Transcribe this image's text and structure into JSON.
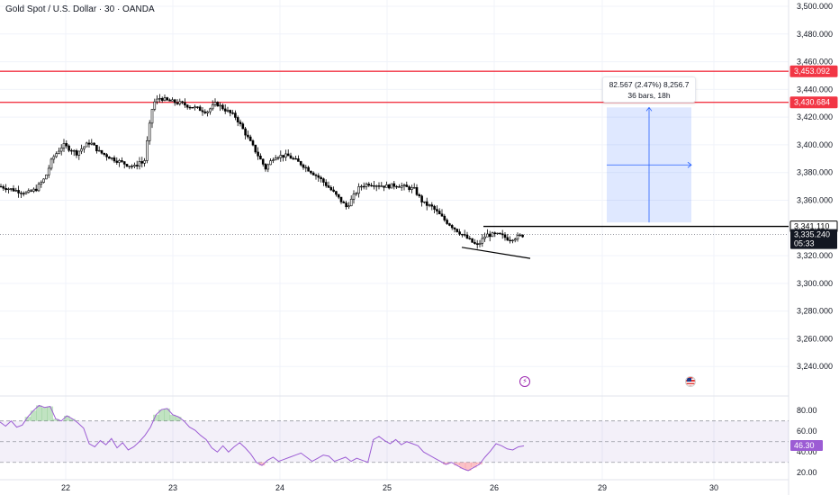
{
  "header": {
    "title": "Gold Spot / U.S. Dollar · 30 · OANDA"
  },
  "chart_data": {
    "type": "candlestick",
    "symbol": "Gold Spot / U.S. Dollar",
    "interval": "30",
    "source": "OANDA",
    "x_tick_labels": [
      "22",
      "23",
      "24",
      "25",
      "26",
      "29",
      "30"
    ],
    "y_tick_labels": [
      "3,500.000",
      "3,480.000",
      "3,460.000",
      "3,440.000",
      "3,420.000",
      "3,400.000",
      "3,380.000",
      "3,360.000",
      "3,320.000",
      "3,300.000",
      "3,280.000",
      "3,260.000",
      "3,240.000"
    ],
    "ylim": [
      3220,
      3500
    ],
    "price_path": [
      [
        "22",
        3370
      ],
      [
        "22",
        3365
      ],
      [
        "22",
        3368
      ],
      [
        "22",
        3376
      ],
      [
        "22",
        3390
      ],
      [
        "22",
        3400
      ],
      [
        "22",
        3394
      ],
      [
        "22",
        3398
      ],
      [
        "22",
        3402
      ],
      [
        "22",
        3395
      ],
      [
        "22",
        3390
      ],
      [
        "22",
        3386
      ],
      [
        "22",
        3384
      ],
      [
        "22",
        3388
      ],
      [
        "22",
        3386
      ],
      [
        "23",
        3405
      ],
      [
        "23",
        3430
      ],
      [
        "23",
        3434
      ],
      [
        "23",
        3432
      ],
      [
        "23",
        3430
      ],
      [
        "23",
        3426
      ],
      [
        "23",
        3424
      ],
      [
        "23",
        3430
      ],
      [
        "23",
        3420
      ],
      [
        "24",
        3383
      ],
      [
        "24",
        3392
      ],
      [
        "24",
        3392
      ],
      [
        "24",
        3386
      ],
      [
        "24",
        3376
      ],
      [
        "24",
        3366
      ],
      [
        "24",
        3355
      ],
      [
        "24",
        3370
      ],
      [
        "25",
        3372
      ],
      [
        "25",
        3370
      ],
      [
        "25",
        3371
      ],
      [
        "25",
        3368
      ],
      [
        "25",
        3358
      ],
      [
        "25",
        3355
      ],
      [
        "25",
        3345
      ],
      [
        "25",
        3337
      ],
      [
        "26",
        3327
      ],
      [
        "26",
        3335
      ],
      [
        "26",
        3335
      ],
      [
        "26",
        3332
      ],
      [
        "26",
        3333
      ],
      [
        "26",
        3335
      ]
    ],
    "horizontal_levels": [
      {
        "value": 3453.092,
        "label": "3,453.092",
        "color": "#f23645"
      },
      {
        "value": 3430.684,
        "label": "3,430.684",
        "color": "#f23645"
      },
      {
        "value": 3341.11,
        "label": "3,341.110",
        "color": "#000000"
      }
    ],
    "last_price": {
      "label": "3,335.240",
      "countdown": "05:33",
      "color": "#131722"
    },
    "trendline": {
      "from": [
        "25",
        3326
      ],
      "to": [
        "26",
        3318
      ],
      "color": "#000000"
    },
    "measure": {
      "label_line1": "82.567 (2.47%) 8,256.7",
      "label_line2": "36 bars, 18h",
      "low": 3344,
      "high": 3427,
      "color": "#2962ff"
    },
    "events": [
      {
        "icon": "lightning-icon",
        "color": "#9c27b0"
      },
      {
        "icon": "us-flag-icon",
        "color": "#e53935"
      }
    ],
    "rsi": {
      "y_tick_labels": [
        "80.00",
        "60.00",
        "40.00",
        "20.00"
      ],
      "ylim": [
        15,
        88
      ],
      "upper_band": 70,
      "mid_line": 50,
      "lower_band": 30,
      "current": "46.30",
      "line_color": "#9c5cd4",
      "values": [
        69,
        65,
        70,
        64,
        66,
        74,
        80,
        85,
        83,
        84,
        72,
        70,
        75,
        72,
        68,
        63,
        48,
        45,
        51,
        47,
        53,
        44,
        49,
        42,
        45,
        50,
        56,
        64,
        76,
        81,
        82,
        76,
        74,
        70,
        64,
        61,
        56,
        52,
        44,
        40,
        46,
        40,
        45,
        49,
        44,
        38,
        30,
        27,
        32,
        35,
        31,
        33,
        35,
        37,
        39,
        35,
        31,
        34,
        37,
        36,
        31,
        33,
        35,
        31,
        34,
        32,
        30,
        52,
        55,
        51,
        48,
        52,
        47,
        50,
        48,
        46,
        40,
        37,
        34,
        31,
        28,
        30,
        27,
        24,
        22,
        25,
        28,
        35,
        41,
        48,
        46,
        43,
        42,
        45,
        46
      ]
    }
  }
}
